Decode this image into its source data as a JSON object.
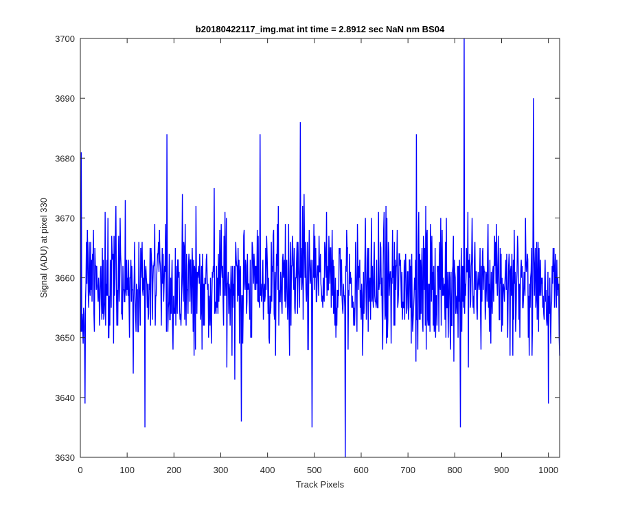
{
  "chart_data": {
    "type": "line",
    "title": "b20180422117_img.mat int time = 2.8912 sec  NaN nm BS04",
    "xlabel": "Track Pixels",
    "ylabel": "Signal (ADU) at pixel 330",
    "xlim": [
      0,
      1024
    ],
    "ylim": [
      3630,
      3700
    ],
    "xticks": [
      0,
      100,
      200,
      300,
      400,
      500,
      600,
      700,
      800,
      900,
      1000
    ],
    "yticks": [
      3630,
      3640,
      3650,
      3660,
      3670,
      3680,
      3690,
      3700
    ],
    "grid": false,
    "legend": "none",
    "series": [
      {
        "color": "#0000ff",
        "x_start": 1,
        "x_step": 1,
        "noise_mean": 3659,
        "noise_sd": 6.3,
        "point_count": 1024,
        "values_note_points": [
          {
            "x": 2,
            "y": 3681
          },
          {
            "x": 10,
            "y": 3639
          },
          {
            "x": 138,
            "y": 3635
          },
          {
            "x": 185,
            "y": 3684
          },
          {
            "x": 344,
            "y": 3636
          },
          {
            "x": 384,
            "y": 3684
          },
          {
            "x": 470,
            "y": 3686
          },
          {
            "x": 495,
            "y": 3635
          },
          {
            "x": 566,
            "y": 3630
          },
          {
            "x": 718,
            "y": 3684
          },
          {
            "x": 812,
            "y": 3635
          },
          {
            "x": 820,
            "y": 3700
          },
          {
            "x": 968,
            "y": 3690
          },
          {
            "x": 1000,
            "y": 3639
          }
        ]
      }
    ]
  }
}
